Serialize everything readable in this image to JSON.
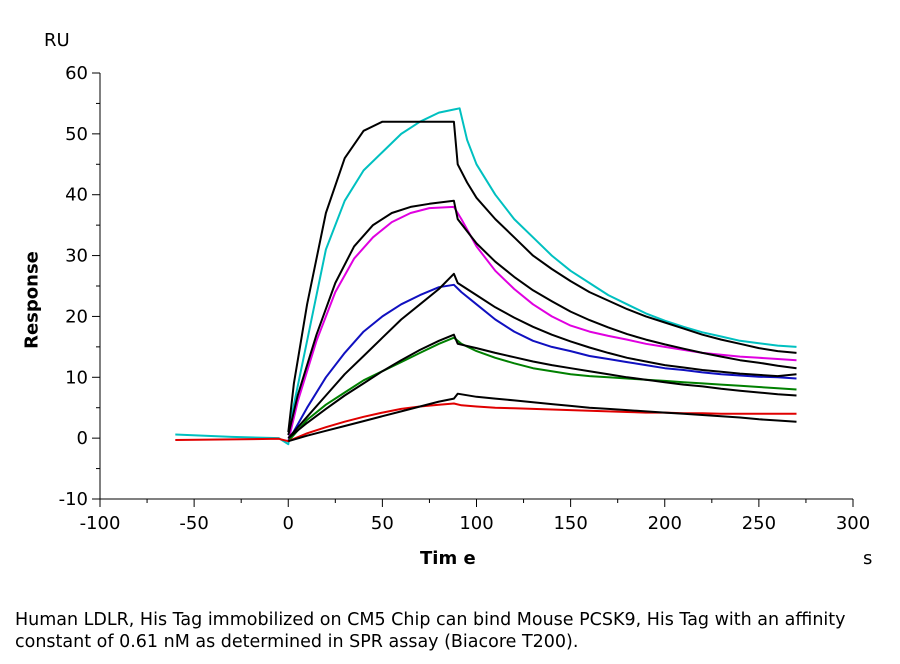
{
  "chart_data": {
    "type": "line",
    "xlabel": "Tim e",
    "ylabel": "Response",
    "x_unit": "s",
    "y_unit": "RU",
    "xlim": [
      -100,
      300
    ],
    "ylim": [
      -10,
      60
    ],
    "x_ticks": [
      -100,
      -50,
      0,
      50,
      100,
      150,
      200,
      250,
      300
    ],
    "y_ticks": [
      -10,
      0,
      10,
      20,
      30,
      40,
      50,
      60
    ],
    "grid": false,
    "legend": "none",
    "series": [
      {
        "color": "#00c0c0",
        "points": [
          [
            -60,
            0.6
          ],
          [
            -30,
            0.2
          ],
          [
            -5,
            0
          ],
          [
            0,
            -1
          ],
          [
            2,
            4
          ],
          [
            10,
            16
          ],
          [
            20,
            31
          ],
          [
            30,
            39
          ],
          [
            40,
            44
          ],
          [
            50,
            47
          ],
          [
            60,
            50
          ],
          [
            70,
            52
          ],
          [
            80,
            53.5
          ],
          [
            88,
            54
          ],
          [
            91,
            54.2
          ],
          [
            95,
            49
          ],
          [
            100,
            45
          ],
          [
            110,
            40
          ],
          [
            120,
            36
          ],
          [
            130,
            33
          ],
          [
            140,
            30
          ],
          [
            150,
            27.5
          ],
          [
            160,
            25.5
          ],
          [
            170,
            23.5
          ],
          [
            180,
            22
          ],
          [
            190,
            20.5
          ],
          [
            200,
            19.3
          ],
          [
            210,
            18.3
          ],
          [
            220,
            17.4
          ],
          [
            230,
            16.7
          ],
          [
            240,
            16
          ],
          [
            250,
            15.6
          ],
          [
            260,
            15.2
          ],
          [
            270,
            15
          ]
        ]
      },
      {
        "color": "#000000",
        "points": [
          [
            0,
            1
          ],
          [
            3,
            9
          ],
          [
            10,
            22
          ],
          [
            20,
            37
          ],
          [
            30,
            46
          ],
          [
            40,
            50.5
          ],
          [
            50,
            52
          ],
          [
            60,
            52
          ],
          [
            70,
            52
          ],
          [
            80,
            52
          ],
          [
            88,
            52
          ],
          [
            90,
            45
          ],
          [
            95,
            42
          ],
          [
            100,
            39.5
          ],
          [
            110,
            36
          ],
          [
            120,
            33
          ],
          [
            130,
            30
          ],
          [
            140,
            27.8
          ],
          [
            150,
            25.8
          ],
          [
            160,
            24
          ],
          [
            170,
            22.6
          ],
          [
            180,
            21.2
          ],
          [
            190,
            20
          ],
          [
            200,
            19
          ],
          [
            210,
            18
          ],
          [
            220,
            17
          ],
          [
            230,
            16.2
          ],
          [
            240,
            15.5
          ],
          [
            250,
            14.8
          ],
          [
            260,
            14.3
          ],
          [
            270,
            14
          ]
        ]
      },
      {
        "color": "#e000e0",
        "points": [
          [
            0,
            -0.5
          ],
          [
            5,
            6
          ],
          [
            15,
            16
          ],
          [
            25,
            24
          ],
          [
            35,
            29.5
          ],
          [
            45,
            33
          ],
          [
            55,
            35.5
          ],
          [
            65,
            37
          ],
          [
            75,
            37.8
          ],
          [
            88,
            38
          ],
          [
            92,
            36
          ],
          [
            100,
            31.5
          ],
          [
            110,
            27.5
          ],
          [
            120,
            24.5
          ],
          [
            130,
            22
          ],
          [
            140,
            20
          ],
          [
            150,
            18.5
          ],
          [
            160,
            17.5
          ],
          [
            170,
            16.8
          ],
          [
            180,
            16.2
          ],
          [
            190,
            15.5
          ],
          [
            200,
            15
          ],
          [
            210,
            14.5
          ],
          [
            220,
            14
          ],
          [
            230,
            13.7
          ],
          [
            240,
            13.4
          ],
          [
            250,
            13.2
          ],
          [
            260,
            13
          ],
          [
            270,
            12.8
          ]
        ]
      },
      {
        "color": "#000000",
        "points": [
          [
            0,
            0.5
          ],
          [
            5,
            7
          ],
          [
            15,
            17
          ],
          [
            25,
            25.5
          ],
          [
            35,
            31.5
          ],
          [
            45,
            35
          ],
          [
            55,
            37
          ],
          [
            65,
            38
          ],
          [
            75,
            38.5
          ],
          [
            88,
            39
          ],
          [
            90,
            36
          ],
          [
            95,
            34
          ],
          [
            100,
            32
          ],
          [
            110,
            29
          ],
          [
            120,
            26.5
          ],
          [
            130,
            24.3
          ],
          [
            140,
            22.5
          ],
          [
            150,
            20.8
          ],
          [
            160,
            19.4
          ],
          [
            170,
            18.2
          ],
          [
            180,
            17.1
          ],
          [
            190,
            16.2
          ],
          [
            200,
            15.4
          ],
          [
            210,
            14.7
          ],
          [
            220,
            14
          ],
          [
            230,
            13.4
          ],
          [
            240,
            12.8
          ],
          [
            250,
            12.4
          ],
          [
            260,
            11.9
          ],
          [
            270,
            11.5
          ]
        ]
      },
      {
        "color": "#1010c0",
        "points": [
          [
            0,
            -0.5
          ],
          [
            10,
            5
          ],
          [
            20,
            10
          ],
          [
            30,
            14
          ],
          [
            40,
            17.5
          ],
          [
            50,
            20
          ],
          [
            60,
            22
          ],
          [
            70,
            23.5
          ],
          [
            80,
            24.8
          ],
          [
            88,
            25.2
          ],
          [
            92,
            24
          ],
          [
            100,
            22
          ],
          [
            110,
            19.5
          ],
          [
            120,
            17.5
          ],
          [
            130,
            16
          ],
          [
            140,
            15
          ],
          [
            150,
            14.3
          ],
          [
            160,
            13.5
          ],
          [
            170,
            13
          ],
          [
            180,
            12.5
          ],
          [
            190,
            12
          ],
          [
            200,
            11.5
          ],
          [
            210,
            11.2
          ],
          [
            220,
            10.8
          ],
          [
            230,
            10.5
          ],
          [
            240,
            10.3
          ],
          [
            250,
            10.1
          ],
          [
            260,
            10
          ],
          [
            270,
            9.8
          ]
        ]
      },
      {
        "color": "#000000",
        "points": [
          [
            0,
            0
          ],
          [
            10,
            3.5
          ],
          [
            20,
            7
          ],
          [
            30,
            10.5
          ],
          [
            40,
            13.5
          ],
          [
            50,
            16.5
          ],
          [
            60,
            19.5
          ],
          [
            70,
            22
          ],
          [
            80,
            24.5
          ],
          [
            88,
            27
          ],
          [
            90,
            25.5
          ],
          [
            100,
            23.5
          ],
          [
            110,
            21.5
          ],
          [
            120,
            19.8
          ],
          [
            130,
            18.3
          ],
          [
            140,
            17
          ],
          [
            150,
            15.9
          ],
          [
            160,
            14.9
          ],
          [
            170,
            14
          ],
          [
            180,
            13.2
          ],
          [
            190,
            12.6
          ],
          [
            200,
            12
          ],
          [
            210,
            11.6
          ],
          [
            220,
            11.2
          ],
          [
            230,
            10.9
          ],
          [
            240,
            10.6
          ],
          [
            250,
            10.4
          ],
          [
            260,
            10.2
          ],
          [
            270,
            10.5
          ]
        ]
      },
      {
        "color": "#008000",
        "points": [
          [
            0,
            -0.5
          ],
          [
            10,
            3
          ],
          [
            20,
            5.5
          ],
          [
            30,
            7.5
          ],
          [
            40,
            9.5
          ],
          [
            50,
            11
          ],
          [
            60,
            12.5
          ],
          [
            70,
            14
          ],
          [
            80,
            15.5
          ],
          [
            88,
            16.5
          ],
          [
            92,
            15.5
          ],
          [
            100,
            14.3
          ],
          [
            110,
            13.2
          ],
          [
            120,
            12.3
          ],
          [
            130,
            11.5
          ],
          [
            140,
            11
          ],
          [
            150,
            10.5
          ],
          [
            160,
            10.2
          ],
          [
            170,
            10
          ],
          [
            180,
            9.8
          ],
          [
            190,
            9.6
          ],
          [
            200,
            9.4
          ],
          [
            210,
            9.2
          ],
          [
            220,
            9
          ],
          [
            230,
            8.8
          ],
          [
            240,
            8.6
          ],
          [
            250,
            8.4
          ],
          [
            260,
            8.2
          ],
          [
            270,
            8
          ]
        ]
      },
      {
        "color": "#000000",
        "points": [
          [
            0,
            0
          ],
          [
            10,
            2.5
          ],
          [
            20,
            4.8
          ],
          [
            30,
            7
          ],
          [
            40,
            9
          ],
          [
            50,
            11
          ],
          [
            60,
            12.8
          ],
          [
            70,
            14.5
          ],
          [
            80,
            16
          ],
          [
            88,
            17
          ],
          [
            90,
            15.5
          ],
          [
            100,
            14.8
          ],
          [
            110,
            14
          ],
          [
            120,
            13.3
          ],
          [
            130,
            12.6
          ],
          [
            140,
            12
          ],
          [
            150,
            11.5
          ],
          [
            160,
            11
          ],
          [
            170,
            10.5
          ],
          [
            180,
            10
          ],
          [
            190,
            9.6
          ],
          [
            200,
            9.2
          ],
          [
            210,
            8.8
          ],
          [
            220,
            8.5
          ],
          [
            230,
            8.1
          ],
          [
            240,
            7.8
          ],
          [
            250,
            7.5
          ],
          [
            260,
            7.2
          ],
          [
            270,
            7
          ]
        ]
      },
      {
        "color": "#e00000",
        "points": [
          [
            -60,
            -0.3
          ],
          [
            -30,
            -0.2
          ],
          [
            -5,
            -0.1
          ],
          [
            0,
            -0.5
          ],
          [
            10,
            0.8
          ],
          [
            20,
            1.8
          ],
          [
            30,
            2.7
          ],
          [
            40,
            3.5
          ],
          [
            50,
            4.2
          ],
          [
            60,
            4.8
          ],
          [
            70,
            5.2
          ],
          [
            80,
            5.5
          ],
          [
            88,
            5.7
          ],
          [
            92,
            5.4
          ],
          [
            100,
            5.2
          ],
          [
            110,
            5
          ],
          [
            120,
            4.9
          ],
          [
            130,
            4.8
          ],
          [
            140,
            4.7
          ],
          [
            150,
            4.6
          ],
          [
            160,
            4.5
          ],
          [
            170,
            4.4
          ],
          [
            180,
            4.3
          ],
          [
            190,
            4.2
          ],
          [
            200,
            4.2
          ],
          [
            210,
            4.1
          ],
          [
            220,
            4.1
          ],
          [
            230,
            4
          ],
          [
            240,
            4
          ],
          [
            250,
            4
          ],
          [
            260,
            4
          ],
          [
            270,
            4
          ]
        ]
      },
      {
        "color": "#000000",
        "points": [
          [
            0,
            -0.5
          ],
          [
            10,
            0.4
          ],
          [
            20,
            1.2
          ],
          [
            30,
            2
          ],
          [
            40,
            2.8
          ],
          [
            50,
            3.6
          ],
          [
            60,
            4.4
          ],
          [
            70,
            5.2
          ],
          [
            80,
            6
          ],
          [
            88,
            6.5
          ],
          [
            90,
            7.3
          ],
          [
            100,
            6.8
          ],
          [
            110,
            6.5
          ],
          [
            120,
            6.2
          ],
          [
            130,
            5.9
          ],
          [
            140,
            5.6
          ],
          [
            150,
            5.3
          ],
          [
            160,
            5
          ],
          [
            170,
            4.8
          ],
          [
            180,
            4.6
          ],
          [
            190,
            4.4
          ],
          [
            200,
            4.2
          ],
          [
            210,
            4
          ],
          [
            220,
            3.8
          ],
          [
            230,
            3.6
          ],
          [
            240,
            3.4
          ],
          [
            250,
            3.1
          ],
          [
            260,
            2.9
          ],
          [
            270,
            2.7
          ]
        ]
      }
    ]
  },
  "caption": "Human LDLR, His Tag immobilized on CM5 Chip can bind Mouse PCSK9, His Tag with an affinity constant of 0.61 nM as determined in SPR assay (Biacore T200)."
}
